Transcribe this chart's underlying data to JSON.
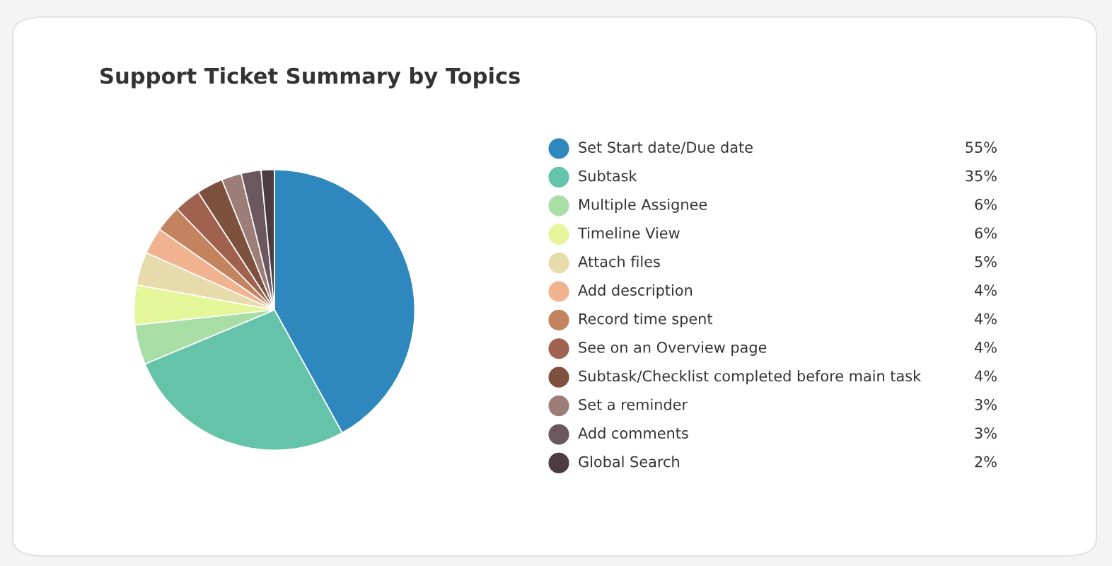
{
  "chart_data": {
    "type": "pie",
    "title": "Support Ticket Summary by Topics",
    "categories": [
      "Set Start date/Due date",
      "Subtask",
      "Multiple Assignee",
      "Timeline View",
      "Attach files",
      "Add description",
      "Record time spent",
      "See on an Overview page",
      "Subtask/Checklist completed before main task",
      "Set a reminder",
      "Add comments",
      "Global Search"
    ],
    "values": [
      55,
      35,
      6,
      6,
      5,
      4,
      4,
      4,
      4,
      3,
      3,
      2
    ],
    "value_labels": [
      "55%",
      "35%",
      "6%",
      "6%",
      "5%",
      "4%",
      "4%",
      "4%",
      "4%",
      "3%",
      "3%",
      "2%"
    ],
    "colors": [
      "#2e88bd",
      "#64c3a8",
      "#a8dea6",
      "#e4f59a",
      "#e8dbab",
      "#f1b290",
      "#c2835e",
      "#a0624f",
      "#7e503e",
      "#9c7d78",
      "#6b585f",
      "#4c3c42"
    ],
    "legend": "right"
  }
}
